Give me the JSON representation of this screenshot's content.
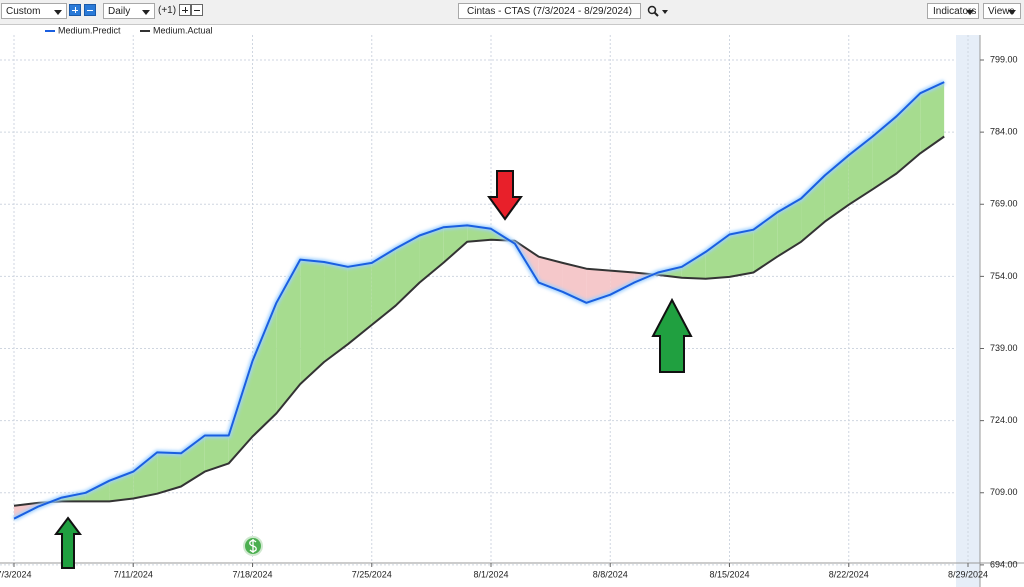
{
  "toolbar": {
    "period": "Custom",
    "interval": "Daily",
    "offset": "(+1)",
    "symbol": "Cintas - CTAS (7/3/2024 - 8/29/2024)",
    "indicators": "Indicators",
    "views": "Views"
  },
  "chart_data": {
    "type": "line",
    "x": [
      "7/3/2024",
      "7/5/2024",
      "7/8/2024",
      "7/9/2024",
      "7/10/2024",
      "7/11/2024",
      "7/12/2024",
      "7/15/2024",
      "7/16/2024",
      "7/17/2024",
      "7/18/2024",
      "7/19/2024",
      "7/22/2024",
      "7/23/2024",
      "7/24/2024",
      "7/25/2024",
      "7/26/2024",
      "7/29/2024",
      "7/30/2024",
      "7/31/2024",
      "8/1/2024",
      "8/2/2024",
      "8/5/2024",
      "8/6/2024",
      "8/7/2024",
      "8/8/2024",
      "8/9/2024",
      "8/12/2024",
      "8/13/2024",
      "8/14/2024",
      "8/15/2024",
      "8/16/2024",
      "8/19/2024",
      "8/20/2024",
      "8/21/2024",
      "8/22/2024",
      "8/23/2024",
      "8/26/2024",
      "8/27/2024",
      "8/28/2024"
    ],
    "series": [
      {
        "name": "Medium.Predict",
        "color": "#1a5fe0",
        "values": [
          703.6,
          706.1,
          708.0,
          709.0,
          711.5,
          713.4,
          717.4,
          717.2,
          720.9,
          720.9,
          736.4,
          748.5,
          757.5,
          757.0,
          756.0,
          756.8,
          759.8,
          762.5,
          764.2,
          764.6,
          763.9,
          760.8,
          752.7,
          750.8,
          748.5,
          750.2,
          752.7,
          754.8,
          756.0,
          759.1,
          762.7,
          763.7,
          767.3,
          770.2,
          775.0,
          779.2,
          783.1,
          787.3,
          792.1,
          794.4
        ]
      },
      {
        "name": "Medium.Actual",
        "color": "#333333",
        "values": [
          706.3,
          706.9,
          707.2,
          707.2,
          707.2,
          707.8,
          708.8,
          710.3,
          713.4,
          715.1,
          720.7,
          725.5,
          731.6,
          736.2,
          739.9,
          743.9,
          747.9,
          752.7,
          756.8,
          761.2,
          761.6,
          761.4,
          758.1,
          756.8,
          755.6,
          755.2,
          754.8,
          754.3,
          753.7,
          753.5,
          753.9,
          754.8,
          758.1,
          761.2,
          765.4,
          768.9,
          772.1,
          775.4,
          779.6,
          783.1
        ]
      }
    ],
    "xticks": [
      "7/3/2024",
      "7/11/2024",
      "7/18/2024",
      "7/25/2024",
      "8/1/2024",
      "8/8/2024",
      "8/15/2024",
      "8/22/2024",
      "8/29/2024"
    ],
    "ylim": [
      689.4,
      804.2
    ],
    "yticks": [
      {
        "value": 694,
        "label": "694.00"
      },
      {
        "value": 709,
        "label": "709.00"
      },
      {
        "value": 724,
        "label": "724.00"
      },
      {
        "value": 739,
        "label": "739.00"
      },
      {
        "value": 754,
        "label": "754.00"
      },
      {
        "value": 769,
        "label": "769.00"
      },
      {
        "value": 784,
        "label": "784.00"
      },
      {
        "value": 799,
        "label": "799.00"
      }
    ],
    "grid": true,
    "above_color": "#a6dc8f",
    "below_color": "#f5c8ca"
  }
}
